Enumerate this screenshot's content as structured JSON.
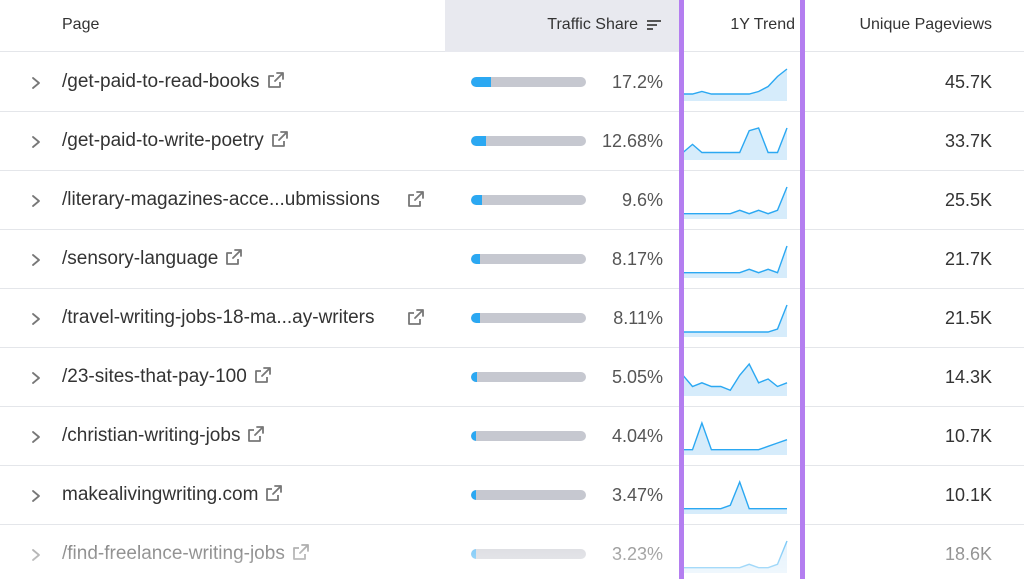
{
  "header": {
    "page_label": "Page",
    "traffic_share_label": "Traffic Share",
    "trend_label": "1Y Trend",
    "pageviews_label": "Unique Pageviews"
  },
  "colors": {
    "bar_fill": "#2ba8f2",
    "bar_track": "#c6c8d0",
    "spark_line": "#2ba8f2",
    "spark_fill": "#d6ecfb",
    "highlight": "#b47ef0",
    "sorted_header_bg": "#e8e9ef"
  },
  "rows": [
    {
      "page": "/get-paid-to-read-books",
      "share_pct": 17.2,
      "share_label": "17.2%",
      "pageviews": "45.7K",
      "trend": [
        2,
        2,
        3,
        2,
        2,
        2,
        2,
        2,
        3,
        5,
        9,
        12
      ]
    },
    {
      "page": "/get-paid-to-write-poetry",
      "share_pct": 12.68,
      "share_label": "12.68%",
      "pageviews": "33.7K",
      "trend": [
        2,
        5,
        2,
        2,
        2,
        2,
        2,
        10,
        11,
        2,
        2,
        11
      ]
    },
    {
      "page": "/literary-magazines-acce...ubmissions",
      "share_pct": 9.6,
      "share_label": "9.6%",
      "pageviews": "25.5K",
      "trend": [
        1,
        1,
        1,
        1,
        1,
        1,
        2,
        1,
        2,
        1,
        2,
        9
      ]
    },
    {
      "page": "/sensory-language",
      "share_pct": 8.17,
      "share_label": "8.17%",
      "pageviews": "21.7K",
      "trend": [
        1,
        1,
        1,
        1,
        1,
        1,
        1,
        2,
        1,
        2,
        1,
        9
      ]
    },
    {
      "page": "/travel-writing-jobs-18-ma...ay-writers",
      "share_pct": 8.11,
      "share_label": "8.11%",
      "pageviews": "21.5K",
      "trend": [
        1,
        1,
        1,
        1,
        1,
        1,
        1,
        1,
        1,
        1,
        2,
        10
      ]
    },
    {
      "page": "/23-sites-that-pay-100",
      "share_pct": 5.05,
      "share_label": "5.05%",
      "pageviews": "14.3K",
      "trend": [
        5,
        2,
        3,
        2,
        2,
        1,
        5,
        8,
        3,
        4,
        2,
        3
      ]
    },
    {
      "page": "/christian-writing-jobs",
      "share_pct": 4.04,
      "share_label": "4.04%",
      "pageviews": "10.7K",
      "trend": [
        1,
        1,
        9,
        1,
        1,
        1,
        1,
        1,
        1,
        2,
        3,
        4
      ]
    },
    {
      "page": "makealivingwriting.com",
      "share_pct": 3.47,
      "share_label": "3.47%",
      "pageviews": "10.1K",
      "trend": [
        1,
        1,
        1,
        1,
        1,
        2,
        9,
        1,
        1,
        1,
        1,
        1
      ]
    },
    {
      "page": "/find-freelance-writing-jobs",
      "share_pct": 3.23,
      "share_label": "3.23%",
      "pageviews": "18.6K",
      "trend": [
        1,
        1,
        1,
        1,
        1,
        1,
        1,
        2,
        1,
        1,
        2,
        9
      ]
    }
  ]
}
